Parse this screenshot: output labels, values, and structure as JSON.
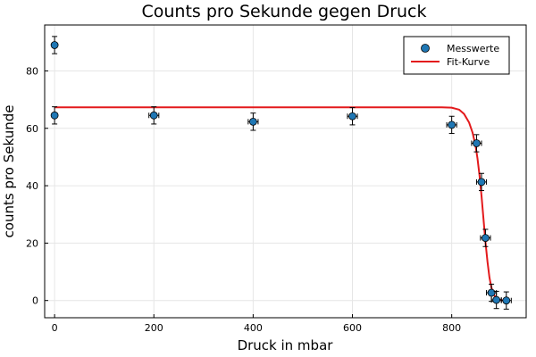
{
  "chart_data": {
    "type": "scatter",
    "title": "Counts pro Sekunde gegen Druck",
    "xlabel": "Druck in mbar",
    "ylabel": "counts pro Sekunde",
    "xlim": [
      -20,
      950
    ],
    "ylim": [
      -6,
      96
    ],
    "xticks": [
      0,
      200,
      400,
      600,
      800
    ],
    "yticks": [
      0,
      20,
      40,
      60,
      80
    ],
    "grid": true,
    "legend_position": "top-right",
    "series": [
      {
        "name": "Messwerte",
        "kind": "points",
        "color": "#1f77b4",
        "points": [
          {
            "x": 0,
            "y": 89,
            "xerr": 0,
            "yerr": 3
          },
          {
            "x": 0,
            "y": 64.5,
            "xerr": 0,
            "yerr": 3
          },
          {
            "x": 200,
            "y": 64.5,
            "xerr": 10,
            "yerr": 3
          },
          {
            "x": 400,
            "y": 62.3,
            "xerr": 10,
            "yerr": 3
          },
          {
            "x": 600,
            "y": 64.2,
            "xerr": 10,
            "yerr": 3
          },
          {
            "x": 800,
            "y": 61.2,
            "xerr": 10,
            "yerr": 3
          },
          {
            "x": 850,
            "y": 54.8,
            "xerr": 10,
            "yerr": 3
          },
          {
            "x": 860,
            "y": 41.3,
            "xerr": 10,
            "yerr": 3
          },
          {
            "x": 868,
            "y": 21.8,
            "xerr": 10,
            "yerr": 3
          },
          {
            "x": 880,
            "y": 2.7,
            "xerr": 10,
            "yerr": 3
          },
          {
            "x": 890,
            "y": 0.2,
            "xerr": 10,
            "yerr": 3
          },
          {
            "x": 910,
            "y": 0,
            "xerr": 10,
            "yerr": 3
          }
        ]
      },
      {
        "name": "Fit-Kurve",
        "kind": "line",
        "color": "#e31a1c",
        "x": [
          0,
          200,
          400,
          600,
          700,
          780,
          800,
          815,
          825,
          835,
          842,
          848,
          852,
          856,
          860,
          864,
          868,
          872,
          876,
          880,
          885,
          890,
          895,
          900,
          905,
          910
        ],
        "y": [
          67.3,
          67.3,
          67.3,
          67.3,
          67.3,
          67.3,
          67.2,
          66.5,
          65.0,
          62.0,
          58.5,
          54.0,
          49.5,
          43.5,
          36.5,
          28.5,
          20.5,
          13.5,
          8.0,
          4.5,
          2.0,
          0.8,
          0.3,
          0.1,
          0.0,
          0.0
        ]
      }
    ]
  }
}
